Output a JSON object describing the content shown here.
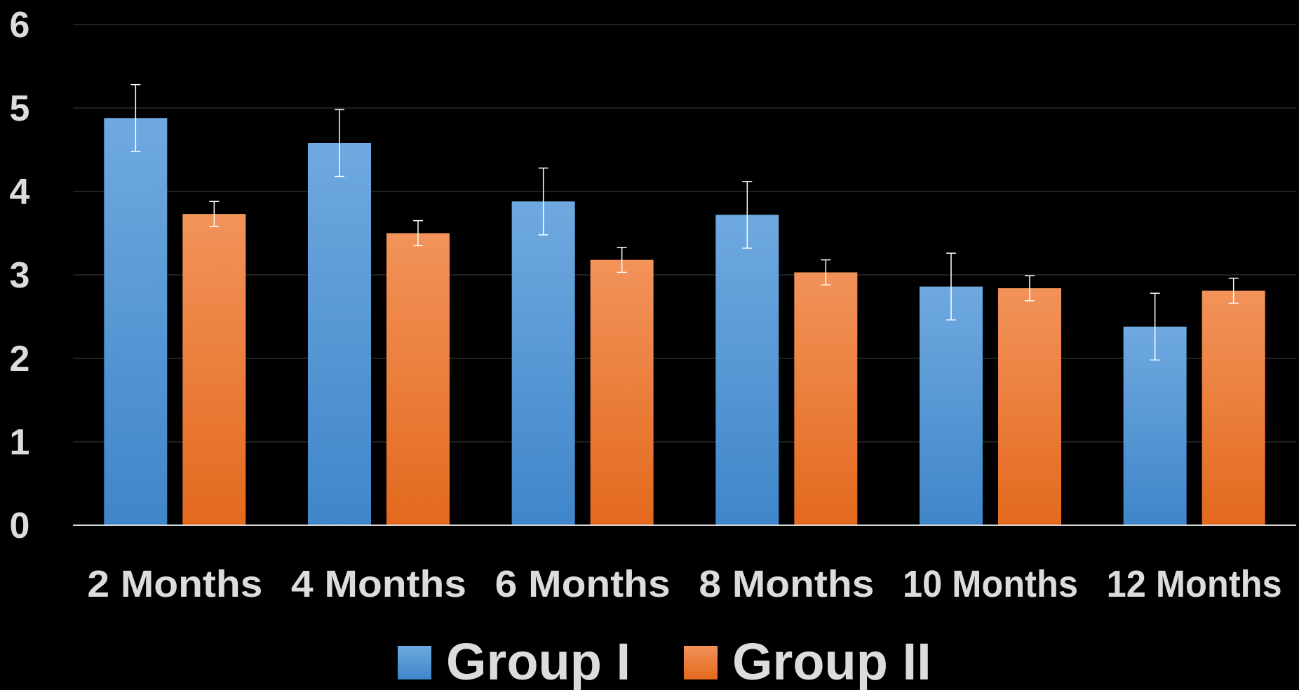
{
  "chart_data": {
    "type": "bar",
    "title": "",
    "xlabel": "",
    "ylabel": "",
    "ylim": [
      0,
      6
    ],
    "yticks": [
      "0",
      "1",
      "2",
      "3",
      "4",
      "5",
      "6"
    ],
    "grid": true,
    "legend_position": "bottom",
    "categories": [
      "2 Months",
      "4 Months",
      "6 Months",
      "8 Months",
      "10 Months",
      "12 Months"
    ],
    "series": [
      {
        "name": "Group I",
        "color": "#5B9BD5",
        "values": [
          4.88,
          4.58,
          3.88,
          3.72,
          2.86,
          2.38
        ],
        "errors": [
          0.4,
          0.4,
          0.4,
          0.4,
          0.4,
          0.4
        ]
      },
      {
        "name": "Group II",
        "color": "#ED7D31",
        "values": [
          3.73,
          3.5,
          3.18,
          3.03,
          2.84,
          2.81
        ],
        "errors": [
          0.15,
          0.15,
          0.15,
          0.15,
          0.15,
          0.15
        ]
      }
    ]
  }
}
